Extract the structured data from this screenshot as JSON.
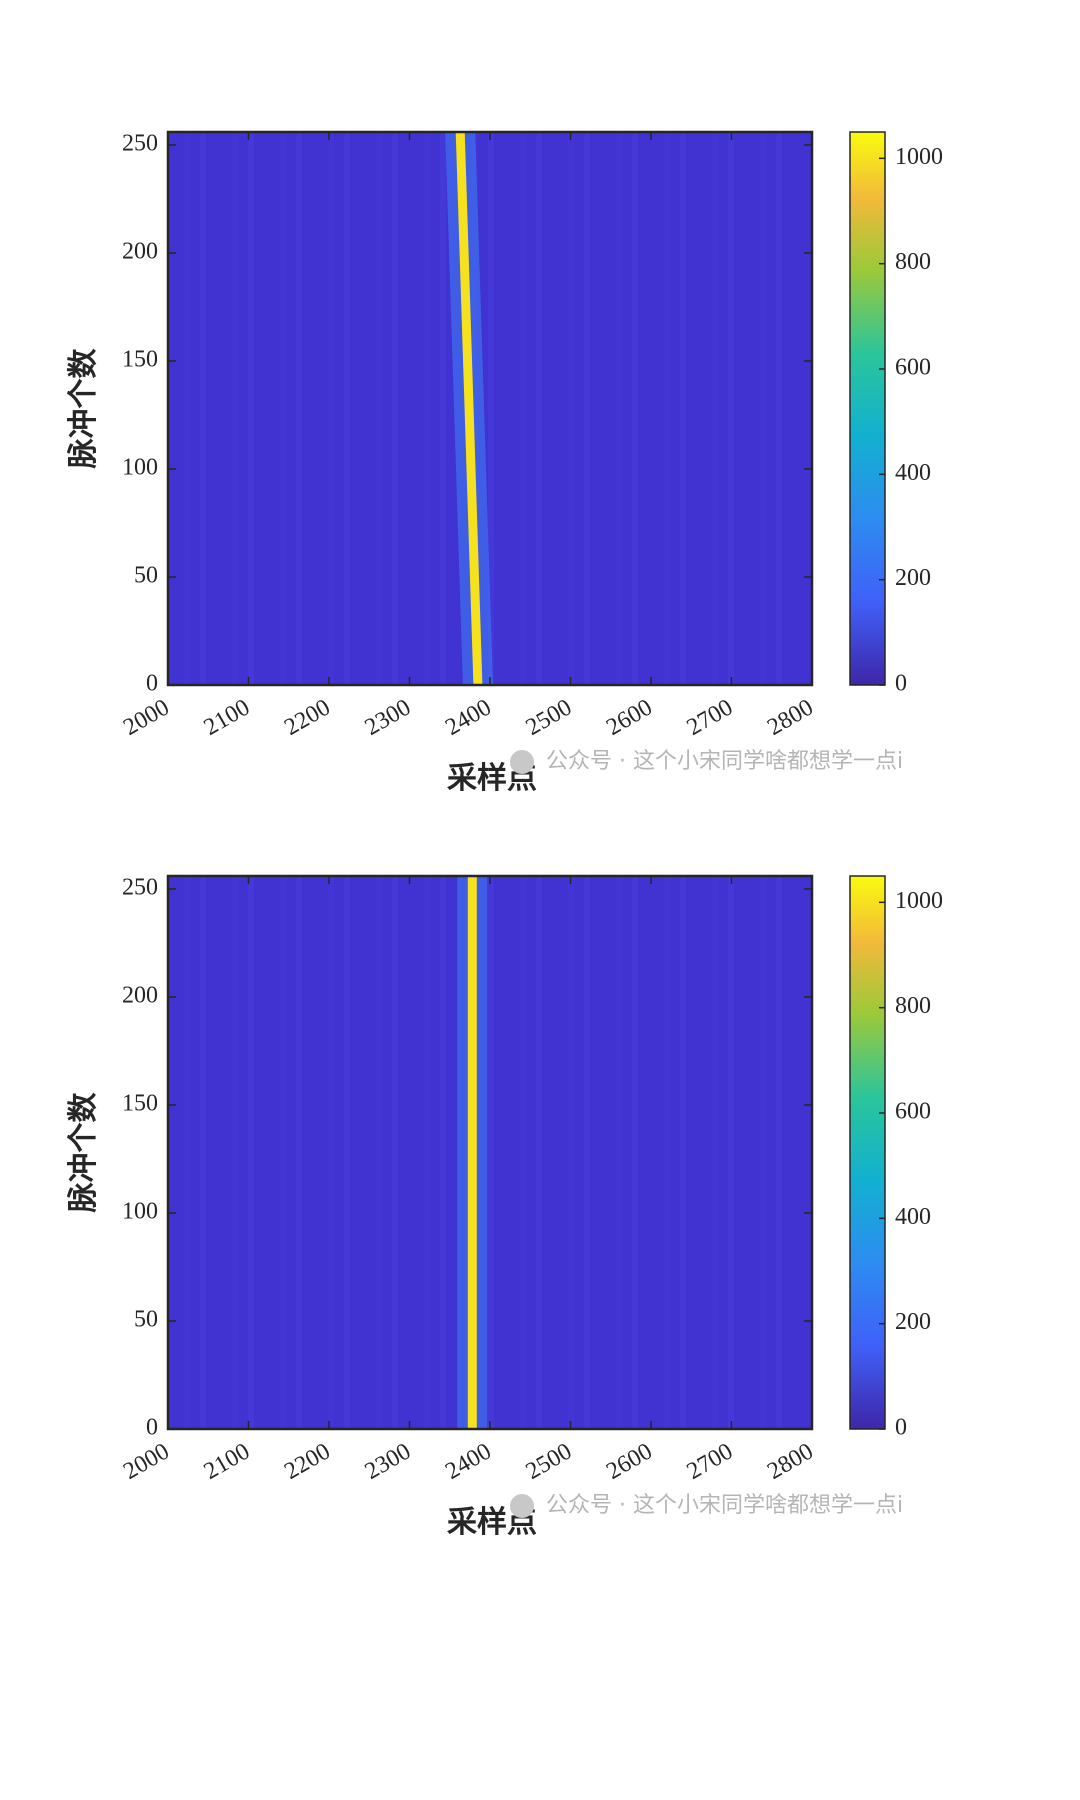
{
  "chart_data": [
    {
      "type": "heatmap",
      "xlabel": "采样点",
      "ylabel": "脉冲个数",
      "x": [
        2385,
        2363
      ],
      "values": [
        0,
        256
      ],
      "peak": 1000,
      "xlim": [
        2000,
        2800
      ],
      "xticks": [
        2000,
        2100,
        2200,
        2300,
        2400,
        2500,
        2600,
        2700,
        2800
      ],
      "ylim": [
        0,
        256
      ],
      "yticks": [
        0,
        50,
        100,
        150,
        200,
        250
      ],
      "clim": [
        0,
        1050
      ],
      "cticks": [
        0,
        200,
        400,
        600,
        800,
        1000
      ],
      "watermark": "公众号 · 这个小宋同学啥都想学一点i"
    },
    {
      "type": "heatmap",
      "xlabel": "采样点",
      "ylabel": "脉冲个数",
      "x": [
        2378,
        2378
      ],
      "values": [
        0,
        256
      ],
      "peak": 1000,
      "xlim": [
        2000,
        2800
      ],
      "xticks": [
        2000,
        2100,
        2200,
        2300,
        2400,
        2500,
        2600,
        2700,
        2800
      ],
      "ylim": [
        0,
        256
      ],
      "yticks": [
        0,
        50,
        100,
        150,
        200,
        250
      ],
      "clim": [
        0,
        1050
      ],
      "cticks": [
        0,
        200,
        400,
        600,
        800,
        1000
      ],
      "watermark": "公众号 · 这个小宋同学啥都想学一点i"
    }
  ]
}
